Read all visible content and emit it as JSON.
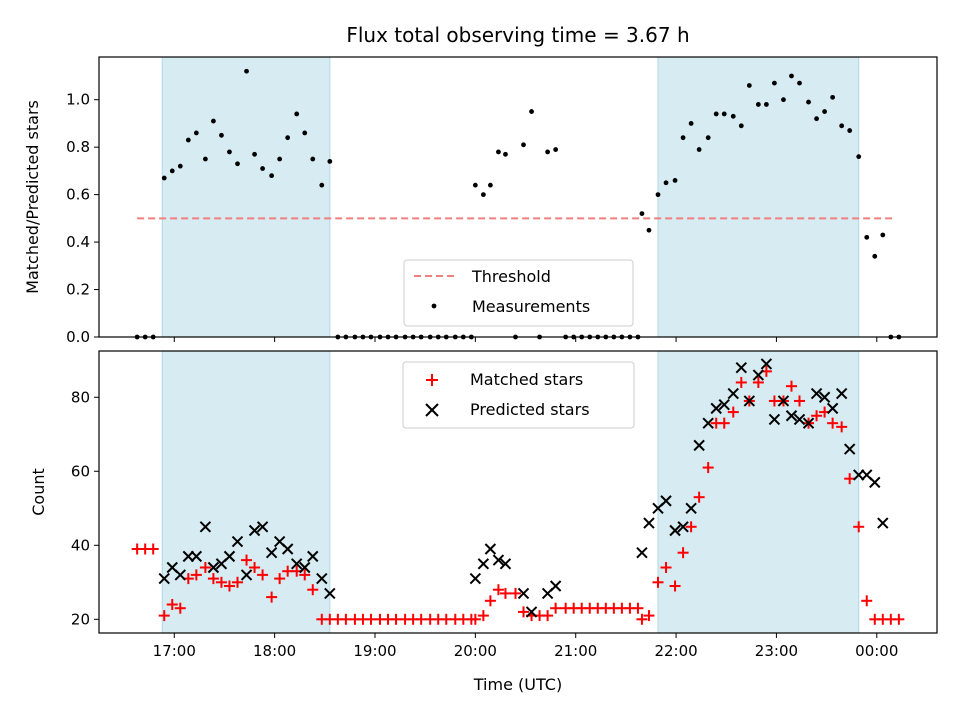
{
  "chart_data": {
    "type": "scatter",
    "title": "Flux total observing time = 3.67 h",
    "xlabel": "Time (UTC)",
    "x_unit": "hours since 00:00 UTC (values > 24 are after midnight)",
    "xlim": [
      16.25,
      24.6
    ],
    "xticks": [
      {
        "value": 17,
        "label": "17:00"
      },
      {
        "value": 18,
        "label": "18:00"
      },
      {
        "value": 19,
        "label": "19:00"
      },
      {
        "value": 20,
        "label": "20:00"
      },
      {
        "value": 21,
        "label": "21:00"
      },
      {
        "value": 22,
        "label": "22:00"
      },
      {
        "value": 23,
        "label": "23:00"
      },
      {
        "value": 24,
        "label": "00:00"
      }
    ],
    "shaded_intervals": [
      [
        16.88,
        18.55
      ],
      [
        21.82,
        23.82
      ]
    ],
    "top": {
      "ylabel": "Matched/Predicted stars",
      "ylim": [
        0,
        1.18
      ],
      "yticks": [
        {
          "value": 0.0,
          "label": "0.0"
        },
        {
          "value": 0.2,
          "label": "0.2"
        },
        {
          "value": 0.4,
          "label": "0.4"
        },
        {
          "value": 0.6,
          "label": "0.6"
        },
        {
          "value": 0.8,
          "label": "0.8"
        },
        {
          "value": 1.0,
          "label": "1.0"
        }
      ],
      "threshold": {
        "name": "Threshold",
        "value": 0.5,
        "x_range": [
          16.63,
          24.18
        ],
        "color": "#f08080"
      },
      "measurements": {
        "name": "Measurements",
        "color": "#000000",
        "x": [
          16.63,
          16.71,
          16.79,
          16.9,
          16.98,
          17.06,
          17.14,
          17.22,
          17.31,
          17.39,
          17.47,
          17.55,
          17.63,
          17.72,
          17.8,
          17.88,
          17.97,
          18.05,
          18.13,
          18.22,
          18.3,
          18.38,
          18.47,
          18.55,
          18.63,
          18.71,
          18.8,
          18.88,
          18.96,
          19.05,
          19.13,
          19.21,
          19.3,
          19.38,
          19.46,
          19.55,
          19.63,
          19.71,
          19.8,
          19.88,
          19.96,
          20.0,
          20.08,
          20.15,
          20.23,
          20.3,
          20.4,
          20.48,
          20.56,
          20.64,
          20.72,
          20.8,
          20.9,
          20.98,
          21.06,
          21.14,
          21.22,
          21.3,
          21.38,
          21.46,
          21.54,
          21.62,
          21.66,
          21.73,
          21.82,
          21.9,
          21.99,
          22.07,
          22.15,
          22.23,
          22.32,
          22.4,
          22.48,
          22.57,
          22.65,
          22.73,
          22.82,
          22.9,
          22.98,
          23.07,
          23.15,
          23.23,
          23.32,
          23.4,
          23.48,
          23.56,
          23.65,
          23.73,
          23.82,
          23.9,
          23.98,
          24.06,
          24.14,
          24.22
        ],
        "y": [
          0,
          0,
          0,
          0.67,
          0.7,
          0.72,
          0.83,
          0.86,
          0.75,
          0.91,
          0.85,
          0.78,
          0.73,
          1.12,
          0.77,
          0.71,
          0.68,
          0.75,
          0.84,
          0.94,
          0.86,
          0.75,
          0.64,
          0.74,
          0,
          0,
          0,
          0,
          0,
          0,
          0,
          0,
          0,
          0,
          0,
          0,
          0,
          0,
          0,
          0,
          0,
          0.64,
          0.6,
          0.64,
          0.78,
          0.77,
          0,
          0.81,
          0.95,
          0,
          0.78,
          0.79,
          0,
          0,
          0,
          0,
          0,
          0,
          0,
          0,
          0,
          0,
          0.52,
          0.45,
          0.6,
          0.65,
          0.66,
          0.84,
          0.9,
          0.79,
          0.84,
          0.94,
          0.94,
          0.93,
          0.89,
          1.06,
          0.98,
          0.98,
          1.07,
          1.0,
          1.1,
          1.07,
          0.99,
          0.92,
          0.95,
          1.01,
          0.89,
          0.87,
          0.76,
          0.42,
          0.34,
          0.43,
          0,
          0
        ]
      },
      "legend": {
        "position": "lower-center",
        "entries": [
          "Threshold",
          "Measurements"
        ]
      }
    },
    "bottom": {
      "ylabel": "Count",
      "ylim": [
        16.3,
        92.5
      ],
      "yticks": [
        {
          "value": 20,
          "label": "20"
        },
        {
          "value": 40,
          "label": "40"
        },
        {
          "value": 60,
          "label": "60"
        },
        {
          "value": 80,
          "label": "80"
        }
      ],
      "series": [
        {
          "name": "Matched stars",
          "marker": "+",
          "color": "#ff0000",
          "x": [
            16.63,
            16.71,
            16.79,
            16.9,
            16.98,
            17.06,
            17.14,
            17.22,
            17.31,
            17.39,
            17.47,
            17.55,
            17.63,
            17.72,
            17.8,
            17.88,
            17.97,
            18.05,
            18.13,
            18.22,
            18.3,
            18.38,
            18.47,
            18.55,
            18.63,
            18.71,
            18.8,
            18.88,
            18.96,
            19.05,
            19.13,
            19.21,
            19.3,
            19.38,
            19.46,
            19.55,
            19.63,
            19.71,
            19.8,
            19.88,
            19.96,
            20.0,
            20.08,
            20.15,
            20.23,
            20.3,
            20.4,
            20.48,
            20.56,
            20.64,
            20.72,
            20.8,
            20.9,
            20.98,
            21.06,
            21.14,
            21.22,
            21.3,
            21.38,
            21.46,
            21.54,
            21.62,
            21.66,
            21.73,
            21.82,
            21.9,
            21.99,
            22.07,
            22.15,
            22.23,
            22.32,
            22.4,
            22.48,
            22.57,
            22.65,
            22.73,
            22.82,
            22.9,
            22.98,
            23.07,
            23.15,
            23.23,
            23.32,
            23.4,
            23.48,
            23.56,
            23.65,
            23.73,
            23.82,
            23.9,
            23.98,
            24.06,
            24.14,
            24.22
          ],
          "y": [
            39,
            39,
            39,
            21,
            24,
            23,
            31,
            32,
            34,
            31,
            30,
            29,
            30,
            36,
            34,
            32,
            26,
            31,
            33,
            33,
            32,
            28,
            20,
            20,
            20,
            20,
            20,
            20,
            20,
            20,
            20,
            20,
            20,
            20,
            20,
            20,
            20,
            20,
            20,
            20,
            20,
            20,
            21,
            25,
            28,
            27,
            27,
            22,
            21,
            21,
            21,
            23,
            23,
            23,
            23,
            23,
            23,
            23,
            23,
            23,
            23,
            23,
            20,
            21,
            30,
            34,
            29,
            38,
            45,
            53,
            61,
            73,
            73,
            76,
            84,
            79,
            84,
            87,
            79,
            79,
            83,
            79,
            73,
            75,
            76,
            73,
            72,
            58,
            45,
            25,
            20,
            20,
            20,
            20
          ]
        },
        {
          "name": "Predicted stars",
          "marker": "x",
          "color": "#000000",
          "x": [
            16.9,
            16.98,
            17.06,
            17.14,
            17.22,
            17.31,
            17.39,
            17.47,
            17.55,
            17.63,
            17.72,
            17.8,
            17.88,
            17.97,
            18.05,
            18.13,
            18.22,
            18.3,
            18.38,
            18.47,
            18.55,
            20.0,
            20.08,
            20.15,
            20.23,
            20.3,
            20.48,
            20.56,
            20.72,
            20.8,
            21.66,
            21.73,
            21.82,
            21.9,
            21.99,
            22.07,
            22.15,
            22.23,
            22.32,
            22.4,
            22.48,
            22.57,
            22.65,
            22.73,
            22.82,
            22.9,
            22.98,
            23.07,
            23.15,
            23.23,
            23.32,
            23.4,
            23.48,
            23.56,
            23.65,
            23.73,
            23.82,
            23.9,
            23.98,
            24.06
          ],
          "y": [
            31,
            34,
            32,
            37,
            37,
            45,
            34,
            35,
            37,
            41,
            32,
            44,
            45,
            38,
            41,
            39,
            35,
            34,
            37,
            31,
            27,
            31,
            35,
            39,
            36,
            35,
            27,
            22,
            27,
            29,
            38,
            46,
            50,
            52,
            44,
            45,
            50,
            67,
            73,
            77,
            78,
            81,
            88,
            79,
            86,
            89,
            74,
            79,
            75,
            74,
            73,
            81,
            80,
            77,
            81,
            66,
            59,
            59,
            57,
            46
          ]
        }
      ],
      "legend": {
        "position": "upper-center",
        "entries": [
          "Matched stars",
          "Predicted stars"
        ]
      }
    }
  }
}
